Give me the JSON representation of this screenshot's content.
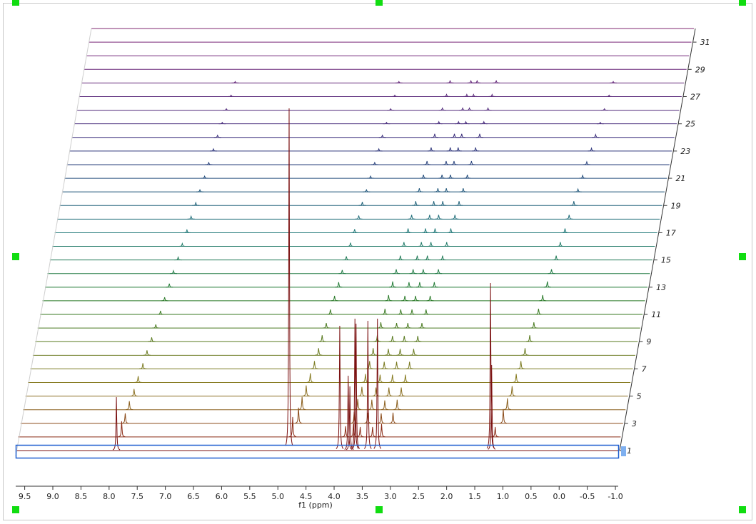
{
  "chart_data": {
    "type": "waterfall",
    "xlabel": "f1 (ppm)",
    "xlim": [
      9.66,
      -1.05
    ],
    "xticks": [
      9.5,
      {
        "value": 9,
        "label": "9.0"
      },
      8.5,
      {
        "value": 8,
        "label": "8.0"
      },
      7.5,
      {
        "value": 7,
        "label": "7.0"
      },
      6.5,
      {
        "value": 6,
        "label": "6.0"
      },
      5.5,
      {
        "value": 5,
        "label": "5.0"
      },
      4.5,
      {
        "value": 4,
        "label": "4.0"
      },
      3.5,
      {
        "value": 3,
        "label": "3.0"
      },
      2.5,
      {
        "value": 2,
        "label": "2.0"
      },
      1.5,
      {
        "value": 1,
        "label": "1.0"
      },
      0.5,
      {
        "value": 0,
        "label": "0.0"
      },
      -0.5,
      {
        "value": -1,
        "label": "-1.0"
      }
    ],
    "ylim": [
      0,
      500
    ],
    "zlim": [
      1,
      32
    ],
    "zticks": [
      1,
      3,
      5,
      7,
      9,
      11,
      13,
      15,
      17,
      19,
      21,
      23,
      25,
      27,
      29,
      31
    ],
    "series": [
      {
        "color": "#7b1010",
        "x": [
          7.87,
          4.8,
          3.9,
          3.75,
          3.72,
          3.63,
          3.61,
          3.4,
          3.23,
          1.22,
          1.2
        ],
        "values": [
          75,
          480,
          175,
          105,
          90,
          185,
          178,
          182,
          185,
          235,
          120
        ]
      },
      {
        "color": "#8a2a14",
        "x": [
          7.82,
          4.78,
          3.84,
          3.7,
          3.58,
          3.36,
          3.2,
          1.18
        ],
        "values": [
          22,
          28,
          15,
          18,
          14,
          14,
          18,
          14
        ]
      },
      {
        "color": "#8a4a18",
        "x": [
          7.8,
          4.72,
          3.73,
          3.49,
          3.25,
          3.04,
          1.08
        ],
        "values": [
          14,
          22,
          16,
          15,
          14,
          15,
          20
        ]
      },
      {
        "color": "#8a5e1c",
        "x": [
          7.77,
          4.7,
          3.71,
          3.46,
          3.23,
          3.01,
          1.05
        ],
        "values": [
          12,
          18,
          15,
          14,
          13,
          14,
          16
        ]
      },
      {
        "color": "#8a6e20",
        "x": [
          7.73,
          4.67,
          3.68,
          3.43,
          3.2,
          2.98,
          1.01
        ],
        "values": [
          10,
          15,
          13,
          12,
          12,
          12,
          14
        ]
      },
      {
        "color": "#867a20",
        "x": [
          7.7,
          4.64,
          3.66,
          3.4,
          3.18,
          2.95,
          0.98
        ],
        "values": [
          9,
          13,
          12,
          11,
          11,
          11,
          12
        ]
      },
      {
        "color": "#7a7a20",
        "x": [
          7.66,
          4.61,
          3.63,
          3.37,
          3.15,
          2.92,
          0.94
        ],
        "values": [
          8,
          11,
          11,
          10,
          10,
          10,
          11
        ]
      },
      {
        "color": "#6a7a20",
        "x": [
          7.63,
          4.58,
          3.61,
          3.34,
          3.13,
          2.89,
          0.91
        ],
        "values": [
          7,
          10,
          10,
          9,
          9,
          9,
          10
        ]
      },
      {
        "color": "#5a7a20",
        "x": [
          7.59,
          4.56,
          3.58,
          3.31,
          3.1,
          2.86,
          0.87
        ],
        "values": [
          6,
          9,
          9,
          8,
          8,
          8,
          9
        ]
      },
      {
        "color": "#4a7a20",
        "x": [
          7.56,
          4.53,
          3.56,
          3.28,
          3.08,
          2.83,
          0.84
        ],
        "values": [
          5,
          7,
          8,
          7,
          7,
          7,
          8
        ]
      },
      {
        "color": "#3a7a22",
        "x": [
          7.52,
          4.5,
          3.53,
          3.25,
          3.05,
          2.8,
          0.8
        ],
        "values": [
          5,
          7,
          8,
          7,
          7,
          7,
          8
        ]
      },
      {
        "color": "#2a7a28",
        "x": [
          7.49,
          4.47,
          3.51,
          3.22,
          3.03,
          2.77,
          0.77
        ],
        "values": [
          5,
          7,
          8,
          7,
          7,
          7,
          8
        ]
      },
      {
        "color": "#207a34",
        "x": [
          7.45,
          4.44,
          3.48,
          3.19,
          3.0,
          2.74,
          0.73
        ],
        "values": [
          5,
          7,
          8,
          7,
          7,
          7,
          8
        ]
      },
      {
        "color": "#207a44",
        "x": [
          7.42,
          4.42,
          3.46,
          3.16,
          2.98,
          2.71,
          0.7
        ],
        "values": [
          4,
          5,
          6,
          6,
          6,
          6,
          6
        ]
      },
      {
        "color": "#207a56",
        "x": [
          7.38,
          4.39,
          3.43,
          3.13,
          2.95,
          2.68,
          0.66
        ],
        "values": [
          4,
          5,
          6,
          6,
          6,
          6,
          6
        ]
      },
      {
        "color": "#207a68",
        "x": [
          7.35,
          4.36,
          3.41,
          3.1,
          2.93,
          2.65,
          0.63
        ],
        "values": [
          4,
          5,
          6,
          6,
          6,
          6,
          6
        ]
      },
      {
        "color": "#207878",
        "x": [
          7.31,
          4.33,
          3.38,
          3.07,
          2.9,
          2.62,
          0.59
        ],
        "values": [
          4,
          5,
          6,
          6,
          6,
          6,
          6
        ]
      },
      {
        "color": "#206e7a",
        "x": [
          7.28,
          4.3,
          3.36,
          3.04,
          2.88,
          2.59,
          0.56
        ],
        "values": [
          4,
          5,
          6,
          6,
          6,
          6,
          6
        ]
      },
      {
        "color": "#20627a",
        "x": [
          7.24,
          4.28,
          3.33,
          3.01,
          2.85,
          2.56,
          0.52
        ],
        "values": [
          4,
          5,
          6,
          6,
          6,
          6,
          6
        ]
      },
      {
        "color": "#20567a",
        "x": [
          7.21,
          4.25,
          3.31,
          2.98,
          2.83,
          2.53,
          0.49
        ],
        "values": [
          3,
          3,
          5,
          5,
          5,
          5,
          4
        ]
      },
      {
        "color": "#204a7a",
        "x": [
          7.17,
          4.22,
          3.28,
          2.95,
          2.8,
          2.5,
          0.45
        ],
        "values": [
          3,
          3,
          5,
          5,
          5,
          5,
          4
        ]
      },
      {
        "color": "#243e7a",
        "x": [
          7.14,
          4.19,
          3.26,
          2.92,
          2.78,
          2.47,
          0.42
        ],
        "values": [
          3,
          3,
          5,
          5,
          5,
          5,
          4
        ]
      },
      {
        "color": "#2c347a",
        "x": [
          7.1,
          4.16,
          3.23,
          2.89,
          2.75,
          2.44,
          0.38
        ],
        "values": [
          3,
          3,
          5,
          5,
          5,
          5,
          4
        ]
      },
      {
        "color": "#382c7a",
        "x": [
          7.07,
          4.14,
          3.21,
          2.86,
          2.73,
          2.41,
          0.35
        ],
        "values": [
          3,
          3,
          5,
          5,
          5,
          5,
          4
        ]
      },
      {
        "color": "#44287a",
        "x": [
          7.03,
          4.11,
          3.18,
          2.83,
          2.7,
          2.38,
          0.31
        ],
        "values": [
          2,
          2,
          3,
          3,
          3,
          3,
          2
        ]
      },
      {
        "color": "#50287a",
        "x": [
          7.0,
          4.08,
          3.16,
          2.8,
          2.68,
          2.35,
          0.28
        ],
        "values": [
          2,
          2,
          3,
          3,
          3,
          3,
          2
        ]
      },
      {
        "color": "#5a287a",
        "x": [
          6.96,
          4.05,
          3.13,
          2.77,
          2.65,
          2.32,
          0.24
        ],
        "values": [
          2,
          2,
          3,
          3,
          3,
          3,
          2
        ]
      },
      {
        "color": "#64287a",
        "x": [
          6.93,
          4.02,
          3.11,
          2.74,
          2.63,
          2.29,
          0.21
        ],
        "values": [
          2,
          2,
          3,
          3,
          3,
          3,
          2
        ]
      },
      {
        "color": "#6c287a",
        "x": [],
        "values": []
      },
      {
        "color": "#74287a",
        "x": [],
        "values": []
      },
      {
        "color": "#7a2878",
        "x": [],
        "values": []
      },
      {
        "color": "#802872",
        "x": [],
        "values": []
      }
    ]
  }
}
